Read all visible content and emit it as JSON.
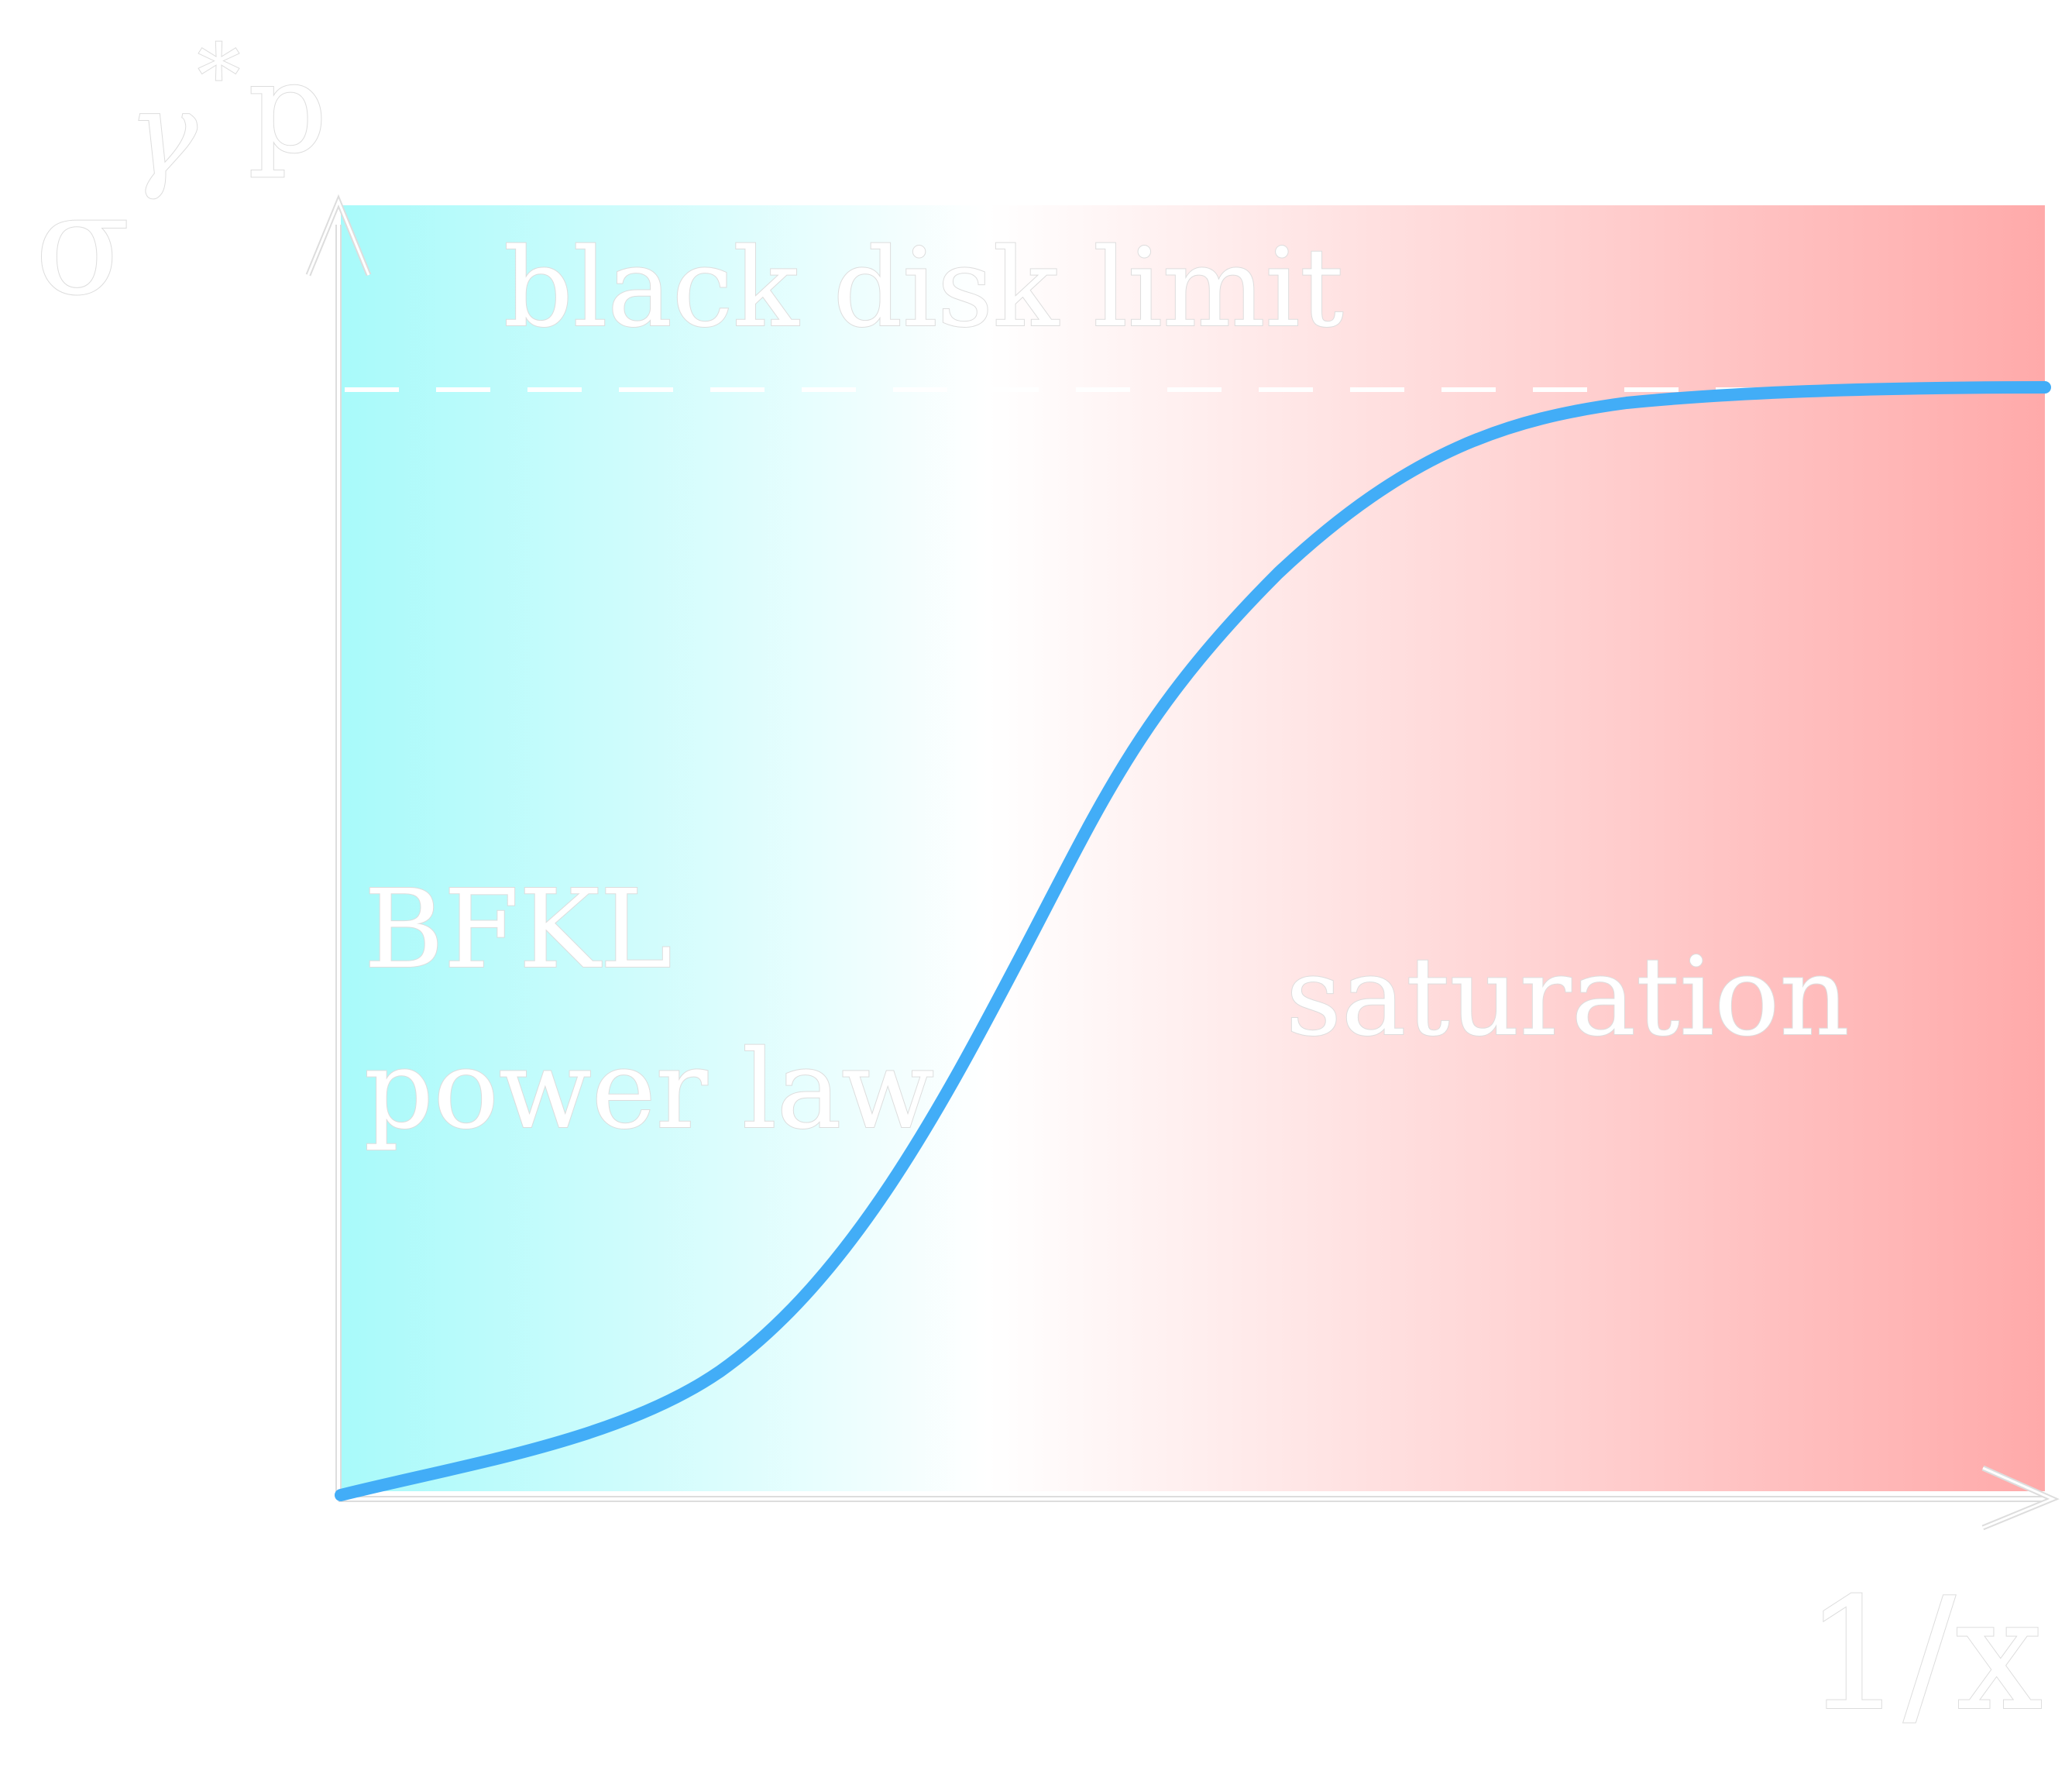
{
  "labels": {
    "y_axis": {
      "base": "σ",
      "superscript": "γ",
      "star": "*",
      "subscript": "p"
    },
    "x_axis": "1/x",
    "black_disk": "black disk limit",
    "bfkl_line1": "BFKL",
    "bfkl_line2": "power law",
    "saturation": "saturation"
  },
  "colors": {
    "left_region": "#a8fafa",
    "middle_region": "#ffffff",
    "right_region": "#ffaaaa",
    "curve": "#42adf7",
    "dashed_line": "#ffffff",
    "axis": "#ffffff",
    "axis_outline": "#dddddd"
  },
  "curve_shape": {
    "description_free": true,
    "form": "sigmoid",
    "start_level": 0.0,
    "end_level": 1.0,
    "saturation_level": 1.0
  }
}
